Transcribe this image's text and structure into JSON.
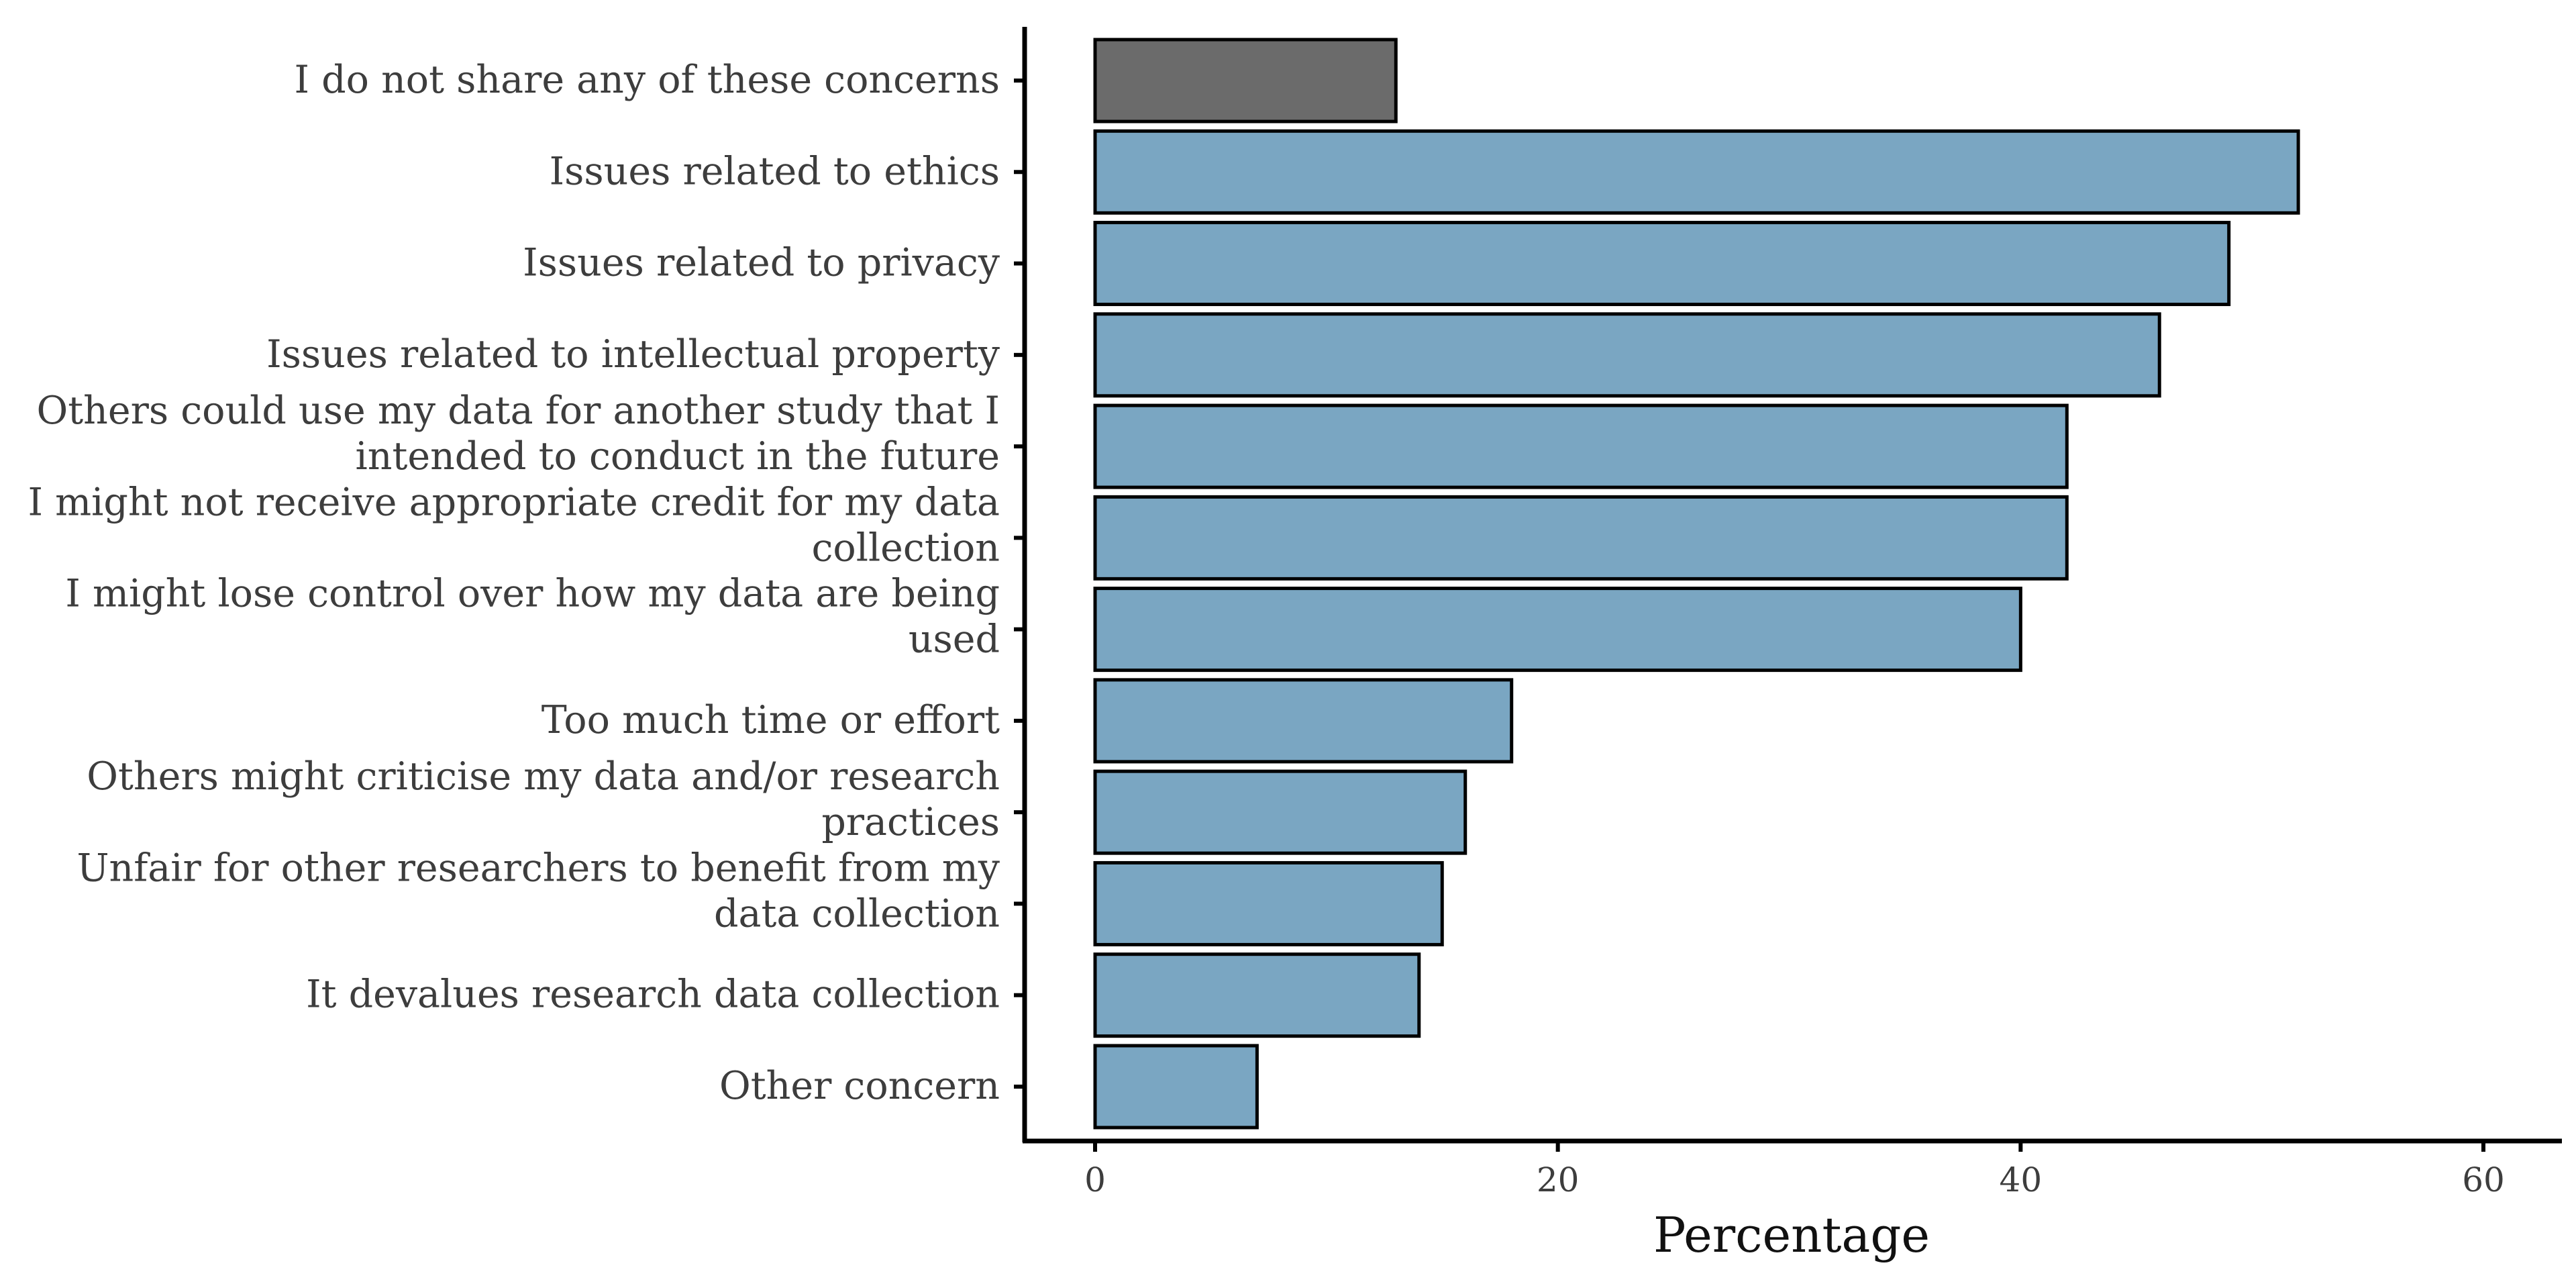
{
  "chart_data": {
    "type": "bar",
    "orientation": "horizontal",
    "categories": [
      [
        "I do not share any of these concerns"
      ],
      [
        "Issues related to ethics"
      ],
      [
        "Issues related to privacy"
      ],
      [
        "Issues related to intellectual property"
      ],
      [
        "Others could use my data for another study that I",
        "intended to conduct in the future"
      ],
      [
        "I might not receive appropriate credit for my data",
        "collection"
      ],
      [
        "I might lose control over how my data are being",
        "used"
      ],
      [
        "Too much time or effort"
      ],
      [
        "Others might criticise my data and/or research",
        "practices"
      ],
      [
        "Unfair for other researchers to benefit from my",
        "data collection"
      ],
      [
        "It devalues research data collection"
      ],
      [
        "Other concern"
      ]
    ],
    "values": [
      13,
      52,
      49,
      46,
      42,
      42,
      40,
      18,
      16,
      15,
      14,
      7
    ],
    "bar_colors": [
      "#6b6b6b",
      "#7aa6c2",
      "#7aa6c2",
      "#7aa6c2",
      "#7aa6c2",
      "#7aa6c2",
      "#7aa6c2",
      "#7aa6c2",
      "#7aa6c2",
      "#7aa6c2",
      "#7aa6c2",
      "#7aa6c2"
    ],
    "xlabel": "Percentage",
    "xlim": [
      0,
      60
    ],
    "xticks": [
      0,
      20,
      40,
      60
    ],
    "grid": false,
    "legend": "none"
  }
}
